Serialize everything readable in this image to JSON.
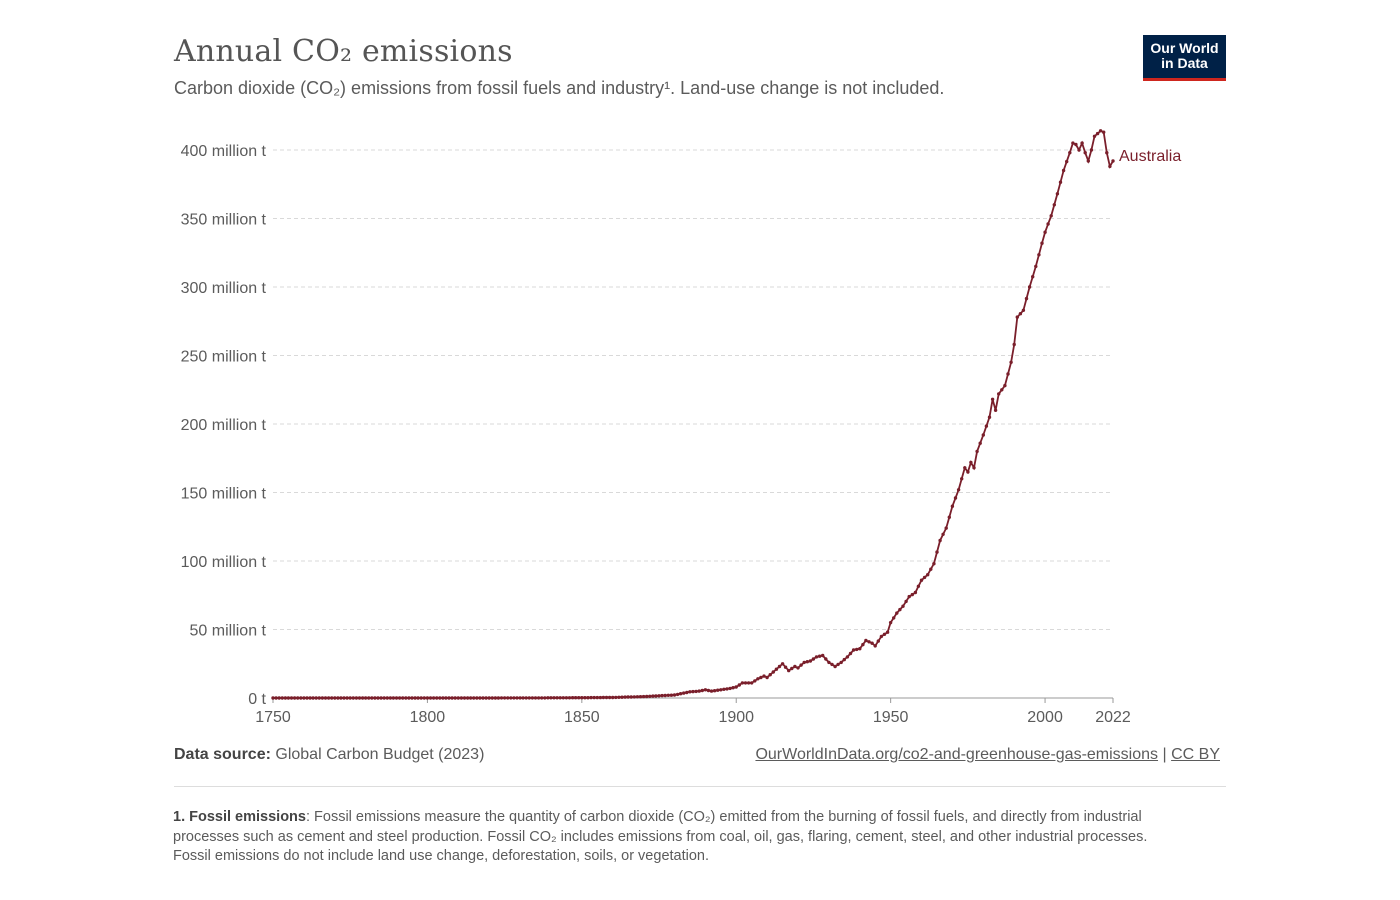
{
  "header": {
    "title": "Annual CO₂ emissions",
    "subtitle": "Carbon dioxide (CO₂) emissions from fossil fuels and industry¹. Land-use change is not included."
  },
  "logo": {
    "line1": "Our World",
    "line2": "in Data",
    "bg_color": "#002147",
    "accent_color": "#ce261e"
  },
  "footer": {
    "source_label": "Data source:",
    "source_text": "Global Carbon Budget (2023)",
    "link_text": "OurWorldInData.org/co2-and-greenhouse-gas-emissions",
    "separator": "|",
    "license_text": "CC BY",
    "note_label": "1. Fossil emissions",
    "note_text": ": Fossil emissions measure the quantity of carbon dioxide (CO₂) emitted from the burning of fossil fuels, and directly from industrial processes such as cement and steel production. Fossil CO₂ includes emissions from coal, oil, gas, flaring, cement, steel, and other industrial processes. Fossil emissions do not include land use change, deforestation, soils, or vegetation."
  },
  "chart_data": {
    "type": "line",
    "title": "Annual CO₂ emissions",
    "xlabel": "",
    "ylabel": "",
    "xlim": [
      1750,
      2022
    ],
    "ylim": [
      0,
      400000000
    ],
    "grid": true,
    "y_ticks": [
      {
        "value": 0,
        "label": "0 t"
      },
      {
        "value": 50000000,
        "label": "50 million t"
      },
      {
        "value": 100000000,
        "label": "100 million t"
      },
      {
        "value": 150000000,
        "label": "150 million t"
      },
      {
        "value": 200000000,
        "label": "200 million t"
      },
      {
        "value": 250000000,
        "label": "250 million t"
      },
      {
        "value": 300000000,
        "label": "300 million t"
      },
      {
        "value": 350000000,
        "label": "350 million t"
      },
      {
        "value": 400000000,
        "label": "400 million t"
      }
    ],
    "x_ticks": [
      {
        "value": 1750,
        "label": "1750"
      },
      {
        "value": 1800,
        "label": "1800"
      },
      {
        "value": 1850,
        "label": "1850"
      },
      {
        "value": 1900,
        "label": "1900"
      },
      {
        "value": 1950,
        "label": "1950"
      },
      {
        "value": 2000,
        "label": "2000"
      },
      {
        "value": 2022,
        "label": "2022"
      }
    ],
    "series": [
      {
        "name": "Australia",
        "color": "#7a1f2b",
        "points": [
          [
            1750,
            0
          ],
          [
            1860,
            400000.0
          ],
          [
            1870,
            1000000.0
          ],
          [
            1880,
            2200000.0
          ],
          [
            1885,
            4500000.0
          ],
          [
            1888,
            5000000.0
          ],
          [
            1890,
            6000000.0
          ],
          [
            1892,
            5000000.0
          ],
          [
            1895,
            6000000.0
          ],
          [
            1898,
            7000000.0
          ],
          [
            1900,
            8000000.0
          ],
          [
            1902,
            11000000.0
          ],
          [
            1905,
            11000000.0
          ],
          [
            1907,
            14000000.0
          ],
          [
            1909,
            16000000.0
          ],
          [
            1910,
            15000000.0
          ],
          [
            1912,
            19000000.0
          ],
          [
            1914,
            23000000.0
          ],
          [
            1915,
            25000000.0
          ],
          [
            1917,
            20000000.0
          ],
          [
            1919,
            23000000.0
          ],
          [
            1920,
            22000000.0
          ],
          [
            1922,
            26000000.0
          ],
          [
            1924,
            27000000.0
          ],
          [
            1926,
            30000000.0
          ],
          [
            1928,
            31000000.0
          ],
          [
            1930,
            26000000.0
          ],
          [
            1932,
            23000000.0
          ],
          [
            1934,
            26000000.0
          ],
          [
            1936,
            30000000.0
          ],
          [
            1938,
            35000000.0
          ],
          [
            1940,
            36000000.0
          ],
          [
            1942,
            42000000.0
          ],
          [
            1944,
            40000000.0
          ],
          [
            1945,
            38000000.0
          ],
          [
            1947,
            45000000.0
          ],
          [
            1949,
            48000000.0
          ],
          [
            1950,
            55000000.0
          ],
          [
            1952,
            62000000.0
          ],
          [
            1954,
            67000000.0
          ],
          [
            1956,
            74000000.0
          ],
          [
            1958,
            77000000.0
          ],
          [
            1960,
            86000000.0
          ],
          [
            1962,
            90000000.0
          ],
          [
            1964,
            98000000.0
          ],
          [
            1966,
            115000000.0
          ],
          [
            1968,
            124000000.0
          ],
          [
            1970,
            140000000.0
          ],
          [
            1972,
            152000000.0
          ],
          [
            1974,
            168000000.0
          ],
          [
            1975,
            165000000.0
          ],
          [
            1976,
            172000000.0
          ],
          [
            1977,
            168000000.0
          ],
          [
            1978,
            180000000.0
          ],
          [
            1980,
            192000000.0
          ],
          [
            1982,
            205000000.0
          ],
          [
            1983,
            218000000.0
          ],
          [
            1984,
            210000000.0
          ],
          [
            1985,
            222000000.0
          ],
          [
            1987,
            228000000.0
          ],
          [
            1989,
            245000000.0
          ],
          [
            1990,
            258000000.0
          ],
          [
            1991,
            278000000.0
          ],
          [
            1993,
            283000000.0
          ],
          [
            1995,
            300000000.0
          ],
          [
            1997,
            315000000.0
          ],
          [
            1999,
            332000000.0
          ],
          [
            2000,
            340000000.0
          ],
          [
            2002,
            352000000.0
          ],
          [
            2004,
            368000000.0
          ],
          [
            2006,
            385000000.0
          ],
          [
            2008,
            398000000.0
          ],
          [
            2009,
            405000000.0
          ],
          [
            2010,
            404000000.0
          ],
          [
            2011,
            400000000.0
          ],
          [
            2012,
            405000000.0
          ],
          [
            2013,
            398000000.0
          ],
          [
            2014,
            392000000.0
          ],
          [
            2015,
            400000000.0
          ],
          [
            2016,
            410000000.0
          ],
          [
            2017,
            412000000.0
          ],
          [
            2018,
            414000000.0
          ],
          [
            2019,
            413000000.0
          ],
          [
            2020,
            398000000.0
          ],
          [
            2021,
            388000000.0
          ],
          [
            2022,
            392000000.0
          ]
        ]
      }
    ]
  }
}
